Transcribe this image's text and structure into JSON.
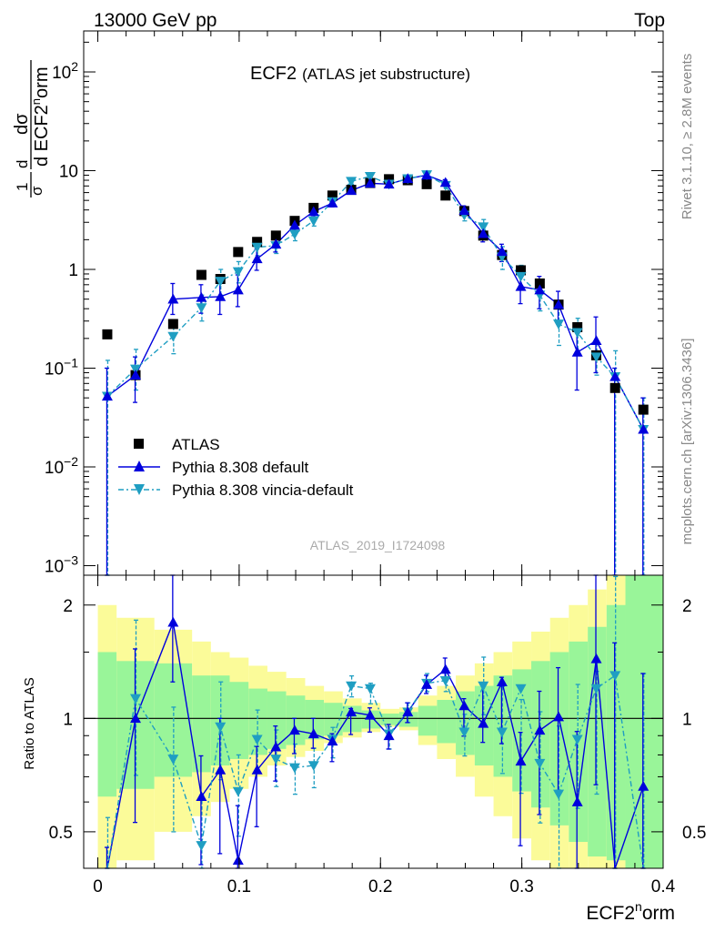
{
  "header": {
    "left": "13000 GeV pp",
    "right": "Top"
  },
  "top_panel": {
    "title_main": "ECF2",
    "title_sub": "(ATLAS jet substructure)",
    "analysis_id": "ATLAS_2019_I1724098",
    "ylabel_frac": "1",
    "ylabel_sigma": "σ",
    "ylabel_d": "d",
    "ylabel_dsigma": "dσ",
    "ylabel_dvar": "d ECF2",
    "ylabel_sup": "n",
    "ylabel_tail": "orm"
  },
  "side_labels": {
    "rivet": "Rivet 3.1.10, ≥ 2.8M events",
    "mcplots": "mcplots.cern.ch [arXiv:1306.3436]"
  },
  "ratio_panel": {
    "ylabel": "Ratio to ATLAS"
  },
  "x_axis": {
    "label_main": "ECF2",
    "label_sup": "n",
    "label_tail": "orm",
    "ticks": [
      "0",
      "0.1",
      "0.2",
      "0.3",
      "0.4"
    ]
  },
  "legend": [
    {
      "label": "ATLAS",
      "marker": "square",
      "color": "#000000"
    },
    {
      "label": "Pythia 8.308 default",
      "marker": "triangle-up",
      "color": "#0000dd"
    },
    {
      "label": "Pythia 8.308 vincia-default",
      "marker": "triangle-down",
      "color": "#1f9ec2"
    }
  ],
  "colors": {
    "atlas": "#000000",
    "default": "#0000dd",
    "vincia": "#1f9ec2",
    "band_inner": "#99f599",
    "band_outer": "#fbfb99"
  },
  "chart_data": {
    "type": "scatter",
    "xlim": [
      -0.01,
      0.4
    ],
    "main": {
      "yscale": "log",
      "ylim": [
        0.0008,
        260
      ],
      "ytick_labels": [
        "10^-3",
        "10^-2",
        "10^-1",
        "1",
        "10",
        "10^2"
      ],
      "x": [
        0.0067,
        0.0267,
        0.0533,
        0.0733,
        0.0867,
        0.0993,
        0.1127,
        0.126,
        0.1393,
        0.1527,
        0.166,
        0.1793,
        0.1927,
        0.206,
        0.2193,
        0.2327,
        0.246,
        0.2593,
        0.2727,
        0.286,
        0.2993,
        0.3127,
        0.326,
        0.3393,
        0.3527,
        0.366,
        0.386
      ],
      "series": [
        {
          "name": "ATLAS",
          "values": [
            0.22,
            0.085,
            0.28,
            0.88,
            0.8,
            1.5,
            1.9,
            2.2,
            3.1,
            4.2,
            5.6,
            6.4,
            7.5,
            8.2,
            8.0,
            7.3,
            5.6,
            3.9,
            2.2,
            1.4,
            0.98,
            0.72,
            0.44,
            0.26,
            0.135,
            0.063,
            0.038
          ]
        },
        {
          "name": "Pythia 8.308 default",
          "values": [
            0.052,
            0.085,
            0.5,
            0.52,
            0.53,
            0.62,
            1.28,
            1.8,
            2.8,
            3.85,
            4.7,
            6.3,
            7.45,
            7.3,
            8.3,
            9.0,
            7.6,
            3.95,
            2.3,
            1.52,
            0.67,
            0.62,
            0.44,
            0.145,
            0.19,
            0.082,
            0.024
          ]
        },
        {
          "name": "Pythia 8.308 vincia-default",
          "values": [
            0.052,
            0.098,
            0.21,
            0.41,
            0.76,
            0.95,
            1.68,
            1.74,
            2.28,
            3.1,
            4.85,
            7.8,
            8.75,
            7.3,
            8.3,
            9.1,
            7.1,
            3.55,
            2.7,
            1.34,
            0.85,
            0.55,
            0.28,
            0.23,
            0.13,
            0.082,
            0.024
          ]
        }
      ],
      "errors": {
        "default_up": [
          0.1,
          0.13,
          0.72,
          0.7,
          0.8,
          0.88,
          1.6,
          2.1,
          3.1,
          4.2,
          5.1,
          6.8,
          8.0,
          7.9,
          8.8,
          9.5,
          8.1,
          4.4,
          2.7,
          1.8,
          0.9,
          0.85,
          0.6,
          0.24,
          0.33,
          0.1,
          0.05
        ],
        "default_dn": [
          0.0008,
          0.045,
          0.35,
          0.36,
          0.35,
          0.42,
          0.98,
          1.5,
          2.5,
          3.5,
          4.3,
          5.8,
          6.9,
          6.8,
          7.8,
          8.5,
          7.1,
          3.5,
          1.9,
          1.2,
          0.45,
          0.4,
          0.28,
          0.06,
          0.09,
          0.0008,
          0.0008
        ],
        "vincia_up": [
          0.12,
          0.155,
          0.3,
          0.55,
          1.0,
          1.2,
          2.0,
          2.05,
          2.65,
          3.5,
          5.3,
          8.3,
          9.3,
          7.8,
          8.8,
          9.6,
          7.6,
          4.0,
          3.2,
          1.7,
          1.1,
          0.75,
          0.42,
          0.32,
          0.18,
          0.15,
          0.05
        ],
        "vincia_dn": [
          0.0008,
          0.06,
          0.14,
          0.3,
          0.55,
          0.73,
          1.38,
          1.45,
          1.95,
          2.75,
          4.4,
          7.3,
          8.2,
          6.8,
          7.8,
          8.6,
          6.6,
          3.1,
          2.25,
          1.0,
          0.62,
          0.38,
          0.17,
          0.15,
          0.085,
          0.0008,
          0.0008
        ]
      }
    },
    "ratio": {
      "yscale": "log",
      "ylim": [
        0.4,
        2.4
      ],
      "ytick_labels": [
        "0.5",
        "1",
        "2"
      ],
      "edges": [
        0.0,
        0.0133,
        0.04,
        0.0667,
        0.08,
        0.0933,
        0.1067,
        0.12,
        0.1333,
        0.1467,
        0.16,
        0.1733,
        0.1867,
        0.2,
        0.2133,
        0.2267,
        0.24,
        0.2533,
        0.2667,
        0.28,
        0.2933,
        0.3067,
        0.32,
        0.3333,
        0.3467,
        0.36,
        0.3733,
        0.4
      ],
      "band_inner_up": [
        1.5,
        1.42,
        1.4,
        1.3,
        1.3,
        1.25,
        1.2,
        1.18,
        1.15,
        1.12,
        1.1,
        1.08,
        1.05,
        1.03,
        1.04,
        1.08,
        1.12,
        1.18,
        1.22,
        1.3,
        1.35,
        1.42,
        1.5,
        1.6,
        1.75,
        2.0,
        2.4
      ],
      "band_inner_dn": [
        0.62,
        0.65,
        0.7,
        0.72,
        0.75,
        0.78,
        0.8,
        0.83,
        0.85,
        0.88,
        0.9,
        0.92,
        0.94,
        0.96,
        0.95,
        0.9,
        0.86,
        0.8,
        0.75,
        0.7,
        0.64,
        0.58,
        0.52,
        0.47,
        0.43,
        0.42,
        0.4
      ],
      "band_outer_up": [
        2.0,
        1.85,
        1.72,
        1.6,
        1.5,
        1.45,
        1.38,
        1.33,
        1.28,
        1.22,
        1.18,
        1.13,
        1.1,
        1.06,
        1.07,
        1.15,
        1.22,
        1.3,
        1.4,
        1.5,
        1.6,
        1.7,
        1.85,
        2.0,
        2.2,
        2.4,
        2.4
      ],
      "band_outer_dn": [
        0.4,
        0.42,
        0.5,
        0.55,
        0.6,
        0.65,
        0.7,
        0.75,
        0.79,
        0.82,
        0.86,
        0.89,
        0.92,
        0.95,
        0.93,
        0.85,
        0.78,
        0.7,
        0.62,
        0.55,
        0.48,
        0.42,
        0.4,
        0.4,
        0.4,
        0.4,
        0.4
      ],
      "default_values": [
        0.26,
        1.0,
        1.8,
        0.62,
        0.73,
        0.42,
        0.73,
        0.84,
        0.93,
        0.91,
        0.87,
        1.04,
        1.02,
        0.9,
        1.04,
        1.23,
        1.35,
        1.08,
        0.97,
        1.25,
        0.77,
        0.93,
        1.01,
        0.6,
        1.44,
        0.38,
        0.66
      ],
      "vincia_values": [
        0.26,
        1.13,
        0.78,
        0.46,
        0.95,
        0.64,
        0.88,
        0.78,
        0.74,
        0.75,
        0.88,
        1.22,
        1.2,
        0.91,
        1.04,
        1.24,
        1.26,
        0.92,
        1.22,
        0.92,
        1.2,
        0.76,
        0.63,
        0.88,
        1.2,
        1.3,
        0.38
      ],
      "reference": 1
    }
  }
}
